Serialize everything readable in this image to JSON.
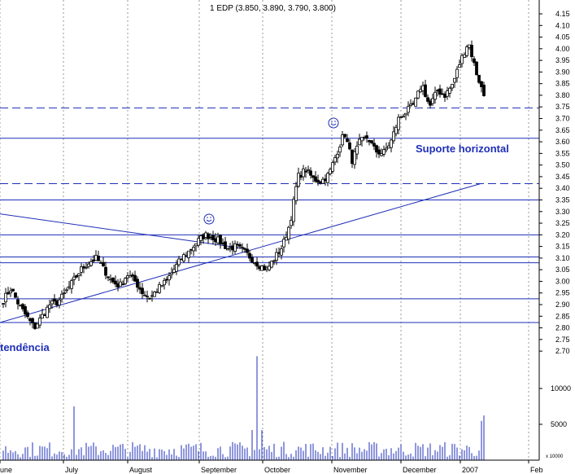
{
  "chart_data": {
    "type": "candlestick",
    "title": "1 EDP (3.850, 3.890, 3.790, 3.800)",
    "price_axis": {
      "ylim": [
        2.66,
        4.19
      ],
      "ticks": [
        "4.15",
        "4.10",
        "4.05",
        "4.00",
        "3.95",
        "3.90",
        "3.85",
        "3.80",
        "3.75",
        "3.70",
        "3.65",
        "3.60",
        "3.55",
        "3.50",
        "3.45",
        "3.40",
        "3.35",
        "3.30",
        "3.25",
        "3.20",
        "3.15",
        "3.10",
        "3.05",
        "3.00",
        "2.95",
        "2.90",
        "2.85",
        "2.80",
        "2.75",
        "2.70"
      ]
    },
    "volume_axis": {
      "ylim": [
        0,
        15000
      ],
      "ticks": [
        "10000",
        "5000"
      ],
      "scale_note": "x 10000"
    },
    "x_axis": {
      "labels": [
        "June",
        "July",
        "August",
        "September",
        "October",
        "November",
        "December",
        "2007",
        "Feb"
      ]
    },
    "grid": "vertical dotted at month boundaries",
    "annotations": [
      {
        "text": "Suporte horizontal",
        "color": "#1f2fb8"
      },
      {
        "text": "tendência",
        "color": "#1f2fb8"
      }
    ],
    "horizontal_lines": [
      {
        "price": 3.745,
        "style": "dashed"
      },
      {
        "price": 3.615,
        "style": "solid"
      },
      {
        "price": 3.42,
        "style": "dashed"
      },
      {
        "price": 3.35,
        "style": "solid"
      },
      {
        "price": 3.2,
        "style": "solid"
      },
      {
        "price": 3.105,
        "style": "solid"
      },
      {
        "price": 3.08,
        "style": "solid"
      },
      {
        "price": 2.925,
        "style": "solid"
      },
      {
        "price": 2.823,
        "style": "solid"
      }
    ],
    "trend_lines": [
      {
        "from": {
          "day": 0,
          "price": 2.823
        },
        "to": {
          "day": 197,
          "price": 3.42
        }
      },
      {
        "from": {
          "day": 0,
          "price": 3.29
        },
        "to": {
          "day": 101,
          "price": 3.14
        }
      }
    ],
    "candles_anchor_prices": [
      2.92,
      2.97,
      2.9,
      2.85,
      2.8,
      2.85,
      2.9,
      2.91,
      2.95,
      3.0,
      3.05,
      3.08,
      3.1,
      3.05,
      3.0,
      2.98,
      3.03,
      3.0,
      2.95,
      2.93,
      2.97,
      3.0,
      3.05,
      3.1,
      3.13,
      3.17,
      3.2,
      3.19,
      3.17,
      3.14,
      3.15,
      3.13,
      3.1,
      3.07,
      3.05,
      3.1,
      3.15,
      3.25,
      3.45,
      3.48,
      3.44,
      3.43,
      3.46,
      3.55,
      3.64,
      3.52,
      3.6,
      3.62,
      3.56,
      3.55,
      3.6,
      3.7,
      3.73,
      3.76,
      3.85,
      3.75,
      3.82,
      3.8,
      3.85,
      3.95,
      4.03,
      3.9,
      3.8
    ],
    "volume_shape": "mostly under 2500 with spikes near 7500, 14500, 6500"
  }
}
